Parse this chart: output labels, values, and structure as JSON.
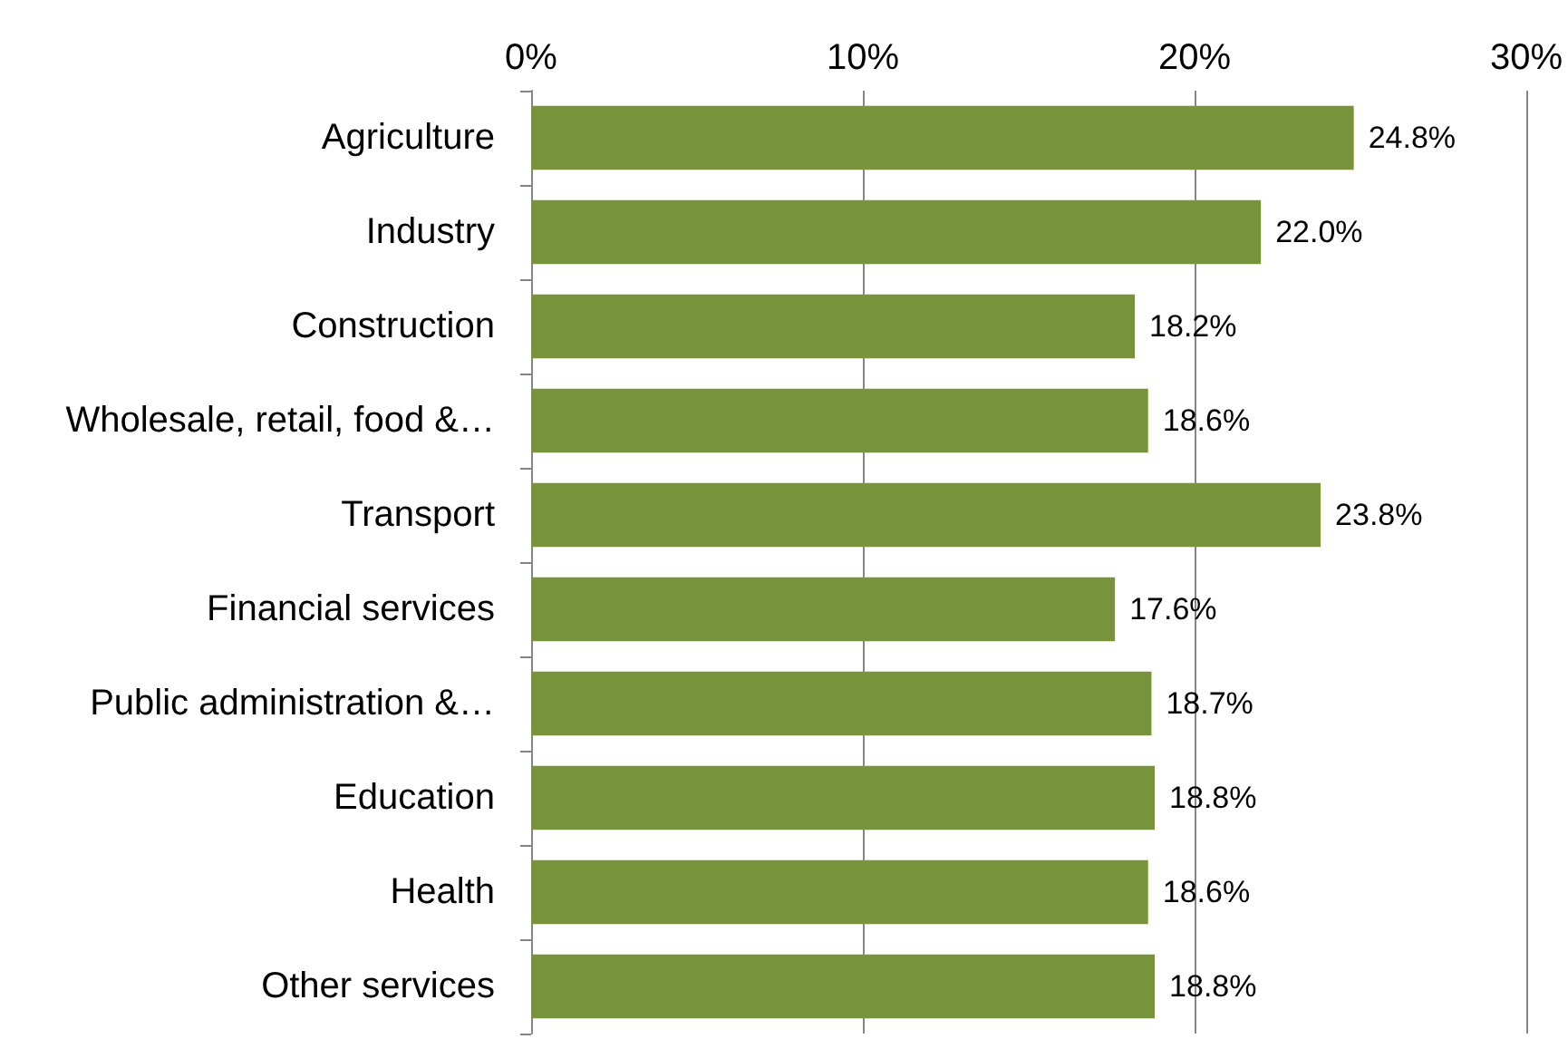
{
  "chart_data": {
    "type": "bar",
    "orientation": "horizontal",
    "categories": [
      "Agriculture",
      "Industry",
      "Construction",
      "Wholesale, retail, food &…",
      "Transport",
      "Financial services",
      "Public administration &…",
      "Education",
      "Health",
      "Other services"
    ],
    "values": [
      24.8,
      22.0,
      18.2,
      18.6,
      23.8,
      17.6,
      18.7,
      18.8,
      18.6,
      18.8
    ],
    "value_labels": [
      "24.8%",
      "22.0%",
      "18.2%",
      "18.6%",
      "23.8%",
      "17.6%",
      "18.7%",
      "18.8%",
      "18.6%",
      "18.8%"
    ],
    "color": "#77933c",
    "xlim": [
      0,
      30
    ],
    "xticks": [
      {
        "value": 0,
        "label": "0%"
      },
      {
        "value": 10,
        "label": "10%"
      },
      {
        "value": 20,
        "label": "20%"
      },
      {
        "value": 30,
        "label": "30%"
      }
    ],
    "grid": "x"
  }
}
